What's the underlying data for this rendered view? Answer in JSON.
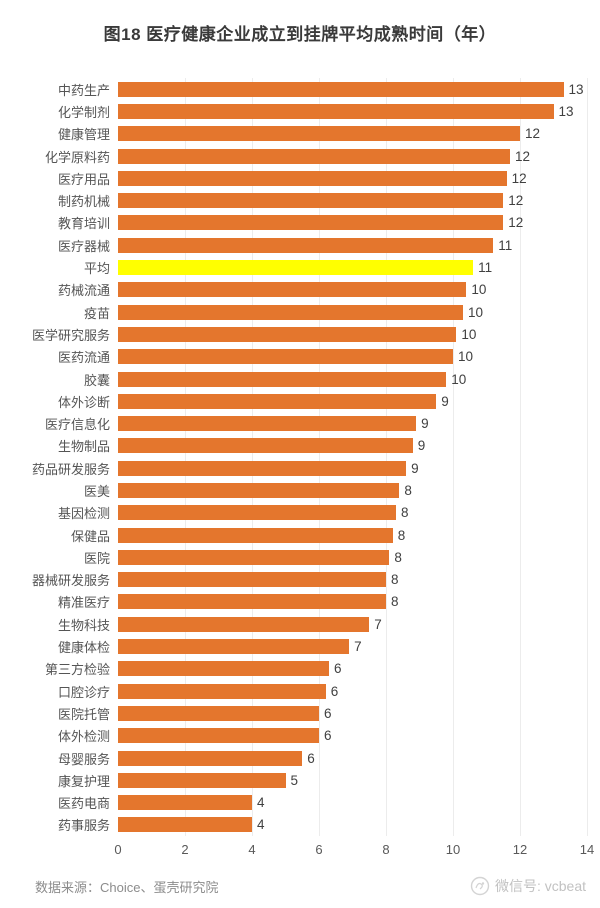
{
  "title": "图18 医疗健康企业成立到挂牌平均成熟时间（年）",
  "footer": {
    "source": "数据来源：Choice、蛋壳研究院",
    "watermark": "微信号: vcbeat",
    "watermark_logo": "vcbeat-logo"
  },
  "colors": {
    "bar": "#e4762d",
    "highlight_bar": "#ffff00",
    "gridline": "#ececec",
    "title_text": "#3a3a3a",
    "category_text": "#555555",
    "value_text": "#404040",
    "tick_text": "#595959",
    "source_text": "#8c8c8c",
    "watermark_text": "#c2c2c2"
  },
  "chart_data": {
    "type": "bar",
    "orientation": "horizontal",
    "title": "图18 医疗健康企业成立到挂牌平均成熟时间（年）",
    "xlabel": "",
    "ylabel": "",
    "xlim": [
      0,
      14
    ],
    "xticks": [
      0,
      2,
      4,
      6,
      8,
      10,
      12,
      14
    ],
    "grid": true,
    "legend": false,
    "highlight_category": "平均",
    "highlight_index": 8,
    "categories": [
      "中药生产",
      "化学制剂",
      "健康管理",
      "化学原料药",
      "医疗用品",
      "制药机械",
      "教育培训",
      "医疗器械",
      "平均",
      "药械流通",
      "疫苗",
      "医学研究服务",
      "医药流通",
      "胶囊",
      "体外诊断",
      "医疗信息化",
      "生物制品",
      "药品研发服务",
      "医美",
      "基因检测",
      "保健品",
      "医院",
      "器械研发服务",
      "精准医疗",
      "生物科技",
      "健康体检",
      "第三方检验",
      "口腔诊疗",
      "医院托管",
      "体外检测",
      "母婴服务",
      "康复护理",
      "医药电商",
      "药事服务"
    ],
    "values": [
      13,
      13,
      12,
      12,
      12,
      12,
      12,
      11,
      11,
      10,
      10,
      10,
      10,
      10,
      9,
      9,
      9,
      9,
      8,
      8,
      8,
      8,
      8,
      8,
      7,
      7,
      6,
      6,
      6,
      6,
      6,
      5,
      4,
      4
    ],
    "bar_lengths_est": [
      13.3,
      13.0,
      12.0,
      11.7,
      11.6,
      11.5,
      11.5,
      11.2,
      10.6,
      10.4,
      10.3,
      10.1,
      10.0,
      9.8,
      9.5,
      8.9,
      8.8,
      8.6,
      8.4,
      8.3,
      8.2,
      8.1,
      8.0,
      8.0,
      7.5,
      6.9,
      6.3,
      6.2,
      6.0,
      6.0,
      5.5,
      5.0,
      4.0,
      4.0
    ]
  }
}
